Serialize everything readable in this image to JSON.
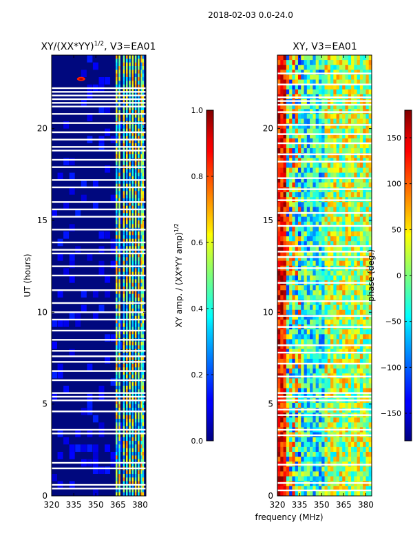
{
  "suptitle": "2018-02-03 0.0-24.0",
  "common_xlabel": "frequency (MHz)",
  "colormap": "jet",
  "chart_data": [
    {
      "type": "heatmap",
      "title_main": "XY/(XX*YY)",
      "title_sup": "1/2",
      "title_tail": ", V3=EA01",
      "ylabel": "UT (hours)",
      "xlim": [
        320,
        384
      ],
      "ylim": [
        0,
        24
      ],
      "xticks": [
        320,
        335,
        350,
        365,
        380
      ],
      "yticks": [
        0,
        5,
        10,
        15,
        20
      ],
      "colorbar": {
        "label_main": "XY amp. / (XX*YY amp)",
        "label_sup": "1/2",
        "range": [
          0.0,
          1.0
        ],
        "ticks": [
          "0.0",
          "0.2",
          "0.4",
          "0.6",
          "0.8",
          "1.0"
        ]
      },
      "flagged_ut_hours": [
        0.4,
        0.6,
        1.5,
        1.8,
        3.4,
        3.6,
        4.6,
        5.2,
        5.4,
        5.6,
        6.3,
        6.8,
        7.3,
        7.6,
        7.9,
        8.5,
        9.0,
        9.6,
        10.0,
        10.5,
        11.2,
        12.0,
        12.5,
        13.2,
        13.4,
        13.8,
        14.5,
        15.2,
        15.6,
        16.0,
        16.8,
        17.2,
        17.9,
        18.3,
        18.8,
        19.0,
        19.4,
        19.8,
        20.3,
        20.8,
        21.2,
        21.4,
        21.6,
        21.8,
        22.0,
        22.2
      ],
      "high_channels_mhz": [
        364,
        366,
        369,
        371,
        373,
        375,
        377,
        379,
        381,
        382
      ]
    },
    {
      "type": "heatmap",
      "title_main": "XY, V3=EA01",
      "ylabel": "",
      "xlim": [
        320,
        384
      ],
      "ylim": [
        0,
        24
      ],
      "xticks": [
        320,
        335,
        350,
        365,
        380
      ],
      "yticks": [
        0,
        5,
        10,
        15,
        20
      ],
      "colorbar": {
        "label_main": "phase (deg.)",
        "range": [
          -180,
          180
        ],
        "ticks": [
          "−150",
          "−100",
          "−50",
          "0",
          "50",
          "100",
          "150"
        ]
      },
      "flagged_ut_hours": [
        0.3,
        0.7,
        1.7,
        3.3,
        3.6,
        4.4,
        4.7,
        5.2,
        5.4,
        5.6,
        6.5,
        7.2,
        7.8,
        8.2,
        9.2,
        9.8,
        10.6,
        11.6,
        12.4,
        13.0,
        13.3,
        13.6,
        14.7,
        15.4,
        16.1,
        16.7,
        17.3,
        18.2,
        18.6,
        19.2,
        19.7,
        20.2,
        20.9,
        21.3,
        21.5,
        21.7,
        22.4,
        23.0
      ]
    }
  ]
}
